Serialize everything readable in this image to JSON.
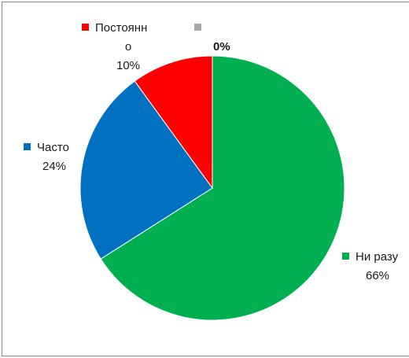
{
  "chart_data": {
    "type": "pie",
    "title": "",
    "categories": [
      "Ни разу",
      "Часто",
      "Постоянно",
      ""
    ],
    "values": [
      66,
      24,
      10,
      0
    ],
    "colors": [
      "#00b050",
      "#0070c0",
      "#ff0000",
      "#a6a6a6"
    ],
    "labels": [
      {
        "name_lines": [
          "Ни разу"
        ],
        "percent": "66%"
      },
      {
        "name_lines": [
          "Часто"
        ],
        "percent": "24%"
      },
      {
        "name_lines": [
          "Постоянн",
          "о"
        ],
        "percent": "10%"
      },
      {
        "name_lines": [
          ""
        ],
        "percent": "0%"
      }
    ],
    "legend": "none",
    "start": "top",
    "direction": "clockwise"
  }
}
